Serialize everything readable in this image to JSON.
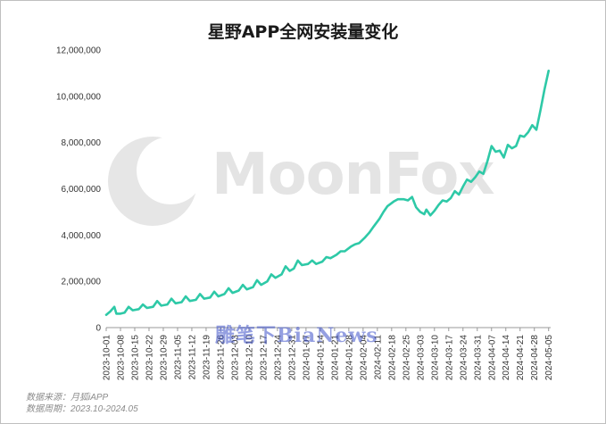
{
  "title": "星野APP全网安装量变化",
  "watermark": "MoonFox",
  "overlay_text": "雕笔下BiaNews",
  "source_label": "数据来源：月狐iAPP",
  "period_label": "数据周期：2023.10-2024.05",
  "colors": {
    "line": "#2ec9a7",
    "axis": "#999999",
    "watermark": "#d6d6d6"
  },
  "chart_data": {
    "type": "line",
    "title": "星野APP全网安装量变化",
    "xlabel": "",
    "ylabel": "",
    "ylim": [
      0,
      12000000
    ],
    "y_ticks": [
      0,
      2000000,
      4000000,
      6000000,
      8000000,
      10000000,
      12000000
    ],
    "y_tick_labels": [
      "0",
      "2,000,000",
      "4,000,000",
      "6,000,000",
      "8,000,000",
      "10,000,000",
      "12,000,000"
    ],
    "x_start": "2023-10-01",
    "x_end": "2024-05-06",
    "x_tick_labels": [
      "2023-10-01",
      "2023-10-08",
      "2023-10-15",
      "2023-10-22",
      "2023-10-29",
      "2023-11-05",
      "2023-11-12",
      "2023-11-19",
      "2023-11-26",
      "2023-12-03",
      "2023-12-10",
      "2023-12-17",
      "2023-12-24",
      "2023-12-31",
      "2024-01-07",
      "2024-01-14",
      "2024-01-21",
      "2024-01-28",
      "2024-02-04",
      "2024-02-11",
      "2024-02-18",
      "2024-02-25",
      "2024-03-03",
      "2024-03-10",
      "2024-03-17",
      "2024-03-24",
      "2024-03-31",
      "2024-04-07",
      "2024-04-14",
      "2024-04-21",
      "2024-04-28",
      "2024-05-05"
    ],
    "grid": false,
    "legend": "none",
    "series": [
      {
        "points": [
          [
            "2023-10-01",
            550000
          ],
          [
            "2023-10-03",
            700000
          ],
          [
            "2023-10-05",
            900000
          ],
          [
            "2023-10-06",
            600000
          ],
          [
            "2023-10-08",
            600000
          ],
          [
            "2023-10-10",
            650000
          ],
          [
            "2023-10-12",
            900000
          ],
          [
            "2023-10-14",
            750000
          ],
          [
            "2023-10-17",
            800000
          ],
          [
            "2023-10-19",
            1000000
          ],
          [
            "2023-10-21",
            850000
          ],
          [
            "2023-10-24",
            900000
          ],
          [
            "2023-10-26",
            1150000
          ],
          [
            "2023-10-28",
            950000
          ],
          [
            "2023-10-31",
            1000000
          ],
          [
            "2023-11-02",
            1250000
          ],
          [
            "2023-11-04",
            1050000
          ],
          [
            "2023-11-07",
            1100000
          ],
          [
            "2023-11-09",
            1350000
          ],
          [
            "2023-11-11",
            1150000
          ],
          [
            "2023-11-14",
            1200000
          ],
          [
            "2023-11-16",
            1450000
          ],
          [
            "2023-11-18",
            1250000
          ],
          [
            "2023-11-21",
            1300000
          ],
          [
            "2023-11-23",
            1550000
          ],
          [
            "2023-11-25",
            1350000
          ],
          [
            "2023-11-28",
            1450000
          ],
          [
            "2023-11-30",
            1700000
          ],
          [
            "2023-12-02",
            1500000
          ],
          [
            "2023-12-05",
            1600000
          ],
          [
            "2023-12-07",
            1850000
          ],
          [
            "2023-12-09",
            1650000
          ],
          [
            "2023-12-12",
            1750000
          ],
          [
            "2023-12-14",
            2050000
          ],
          [
            "2023-12-16",
            1850000
          ],
          [
            "2023-12-19",
            2000000
          ],
          [
            "2023-12-21",
            2300000
          ],
          [
            "2023-12-23",
            2150000
          ],
          [
            "2023-12-26",
            2300000
          ],
          [
            "2023-12-28",
            2650000
          ],
          [
            "2023-12-30",
            2450000
          ],
          [
            "2024-01-01",
            2550000
          ],
          [
            "2024-01-03",
            2900000
          ],
          [
            "2024-01-05",
            2700000
          ],
          [
            "2024-01-08",
            2750000
          ],
          [
            "2024-01-10",
            2900000
          ],
          [
            "2024-01-12",
            2750000
          ],
          [
            "2024-01-15",
            2850000
          ],
          [
            "2024-01-17",
            3050000
          ],
          [
            "2024-01-19",
            3000000
          ],
          [
            "2024-01-22",
            3150000
          ],
          [
            "2024-01-24",
            3300000
          ],
          [
            "2024-01-26",
            3300000
          ],
          [
            "2024-01-29",
            3500000
          ],
          [
            "2024-01-31",
            3600000
          ],
          [
            "2024-02-02",
            3650000
          ],
          [
            "2024-02-05",
            3900000
          ],
          [
            "2024-02-07",
            4100000
          ],
          [
            "2024-02-09",
            4350000
          ],
          [
            "2024-02-12",
            4700000
          ],
          [
            "2024-02-14",
            5000000
          ],
          [
            "2024-02-16",
            5250000
          ],
          [
            "2024-02-19",
            5450000
          ],
          [
            "2024-02-21",
            5550000
          ],
          [
            "2024-02-24",
            5550000
          ],
          [
            "2024-02-26",
            5500000
          ],
          [
            "2024-02-28",
            5650000
          ],
          [
            "2024-03-01",
            5200000
          ],
          [
            "2024-03-03",
            5000000
          ],
          [
            "2024-03-05",
            4900000
          ],
          [
            "2024-03-06",
            5100000
          ],
          [
            "2024-03-08",
            4850000
          ],
          [
            "2024-03-10",
            5050000
          ],
          [
            "2024-03-12",
            5300000
          ],
          [
            "2024-03-14",
            5500000
          ],
          [
            "2024-03-16",
            5450000
          ],
          [
            "2024-03-18",
            5600000
          ],
          [
            "2024-03-20",
            5900000
          ],
          [
            "2024-03-22",
            5750000
          ],
          [
            "2024-03-24",
            6100000
          ],
          [
            "2024-03-26",
            6400000
          ],
          [
            "2024-03-28",
            6300000
          ],
          [
            "2024-03-30",
            6500000
          ],
          [
            "2024-04-01",
            6750000
          ],
          [
            "2024-04-03",
            6650000
          ],
          [
            "2024-04-05",
            7200000
          ],
          [
            "2024-04-07",
            7850000
          ],
          [
            "2024-04-09",
            7600000
          ],
          [
            "2024-04-11",
            7650000
          ],
          [
            "2024-04-13",
            7350000
          ],
          [
            "2024-04-15",
            7900000
          ],
          [
            "2024-04-17",
            7750000
          ],
          [
            "2024-04-19",
            7850000
          ],
          [
            "2024-04-21",
            8300000
          ],
          [
            "2024-04-23",
            8250000
          ],
          [
            "2024-04-25",
            8450000
          ],
          [
            "2024-04-27",
            8750000
          ],
          [
            "2024-04-29",
            8550000
          ],
          [
            "2024-05-01",
            9400000
          ],
          [
            "2024-05-03",
            10300000
          ],
          [
            "2024-05-05",
            11100000
          ]
        ]
      }
    ]
  }
}
